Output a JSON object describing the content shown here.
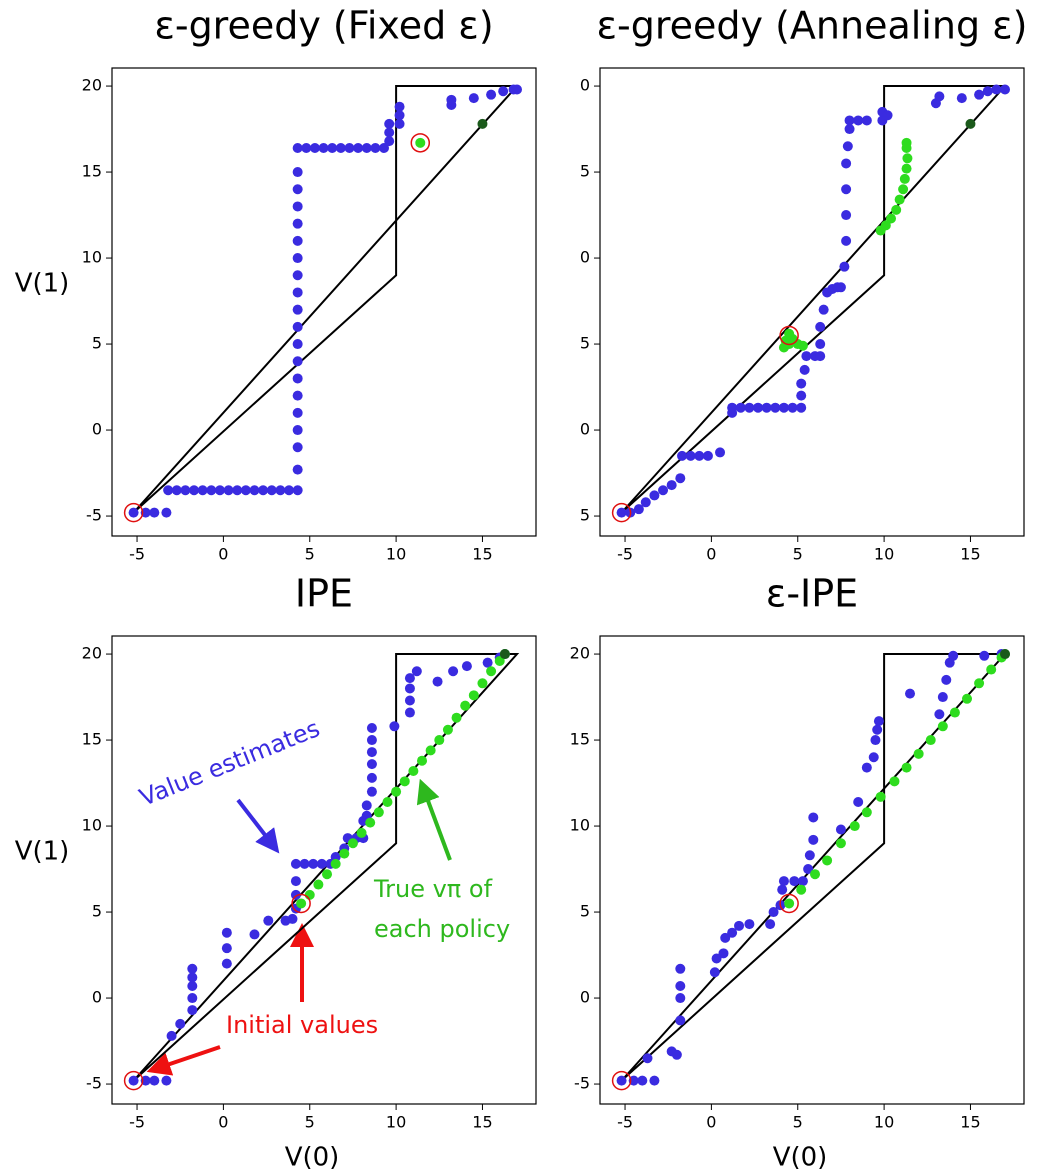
{
  "chart_data": [
    {
      "type": "scatter",
      "title": "ε-greedy (Fixed ε)",
      "ylabel": "V(1)",
      "xlim": [
        -6.45,
        18.1
      ],
      "ylim": [
        -6.16,
        21.05
      ],
      "xticks": [
        -5,
        0,
        5,
        10,
        15
      ],
      "yticks": [
        -5,
        0,
        5,
        10,
        15,
        20
      ],
      "boundary": {
        "x": [
          -5.2,
          10,
          10,
          17,
          -5.2
        ],
        "y": [
          -4.8,
          9,
          20,
          20,
          -4.8
        ]
      },
      "series": [
        {
          "color": "#3a2be0",
          "marker": "dot",
          "x": [
            -5.2,
            -4.5,
            -4,
            -3.3,
            -3.2,
            -2.7,
            -2.2,
            -1.7,
            -1.2,
            -0.7,
            -0.2,
            0.3,
            0.8,
            1.3,
            1.8,
            2.3,
            2.8,
            3.3,
            3.8,
            4.3,
            4.3,
            4.3,
            4.3,
            4.3,
            4.3,
            4.3,
            4.3,
            4.3,
            4.3,
            4.3,
            4.3,
            4.3,
            4.3,
            4.3,
            4.3,
            4.3,
            4.3,
            4.3,
            4.3,
            4.8,
            5.3,
            5.8,
            6.3,
            6.8,
            7.3,
            7.8,
            8.3,
            8.8,
            9.3,
            9.6,
            9.6,
            9.6,
            10.2,
            10.2,
            10.2,
            13.2,
            13.2,
            14.5,
            15.5,
            16.2,
            16.8,
            17
          ],
          "values": [
            -4.8,
            -4.8,
            -4.8,
            -4.8,
            -3.5,
            -3.5,
            -3.5,
            -3.5,
            -3.5,
            -3.5,
            -3.5,
            -3.5,
            -3.5,
            -3.5,
            -3.5,
            -3.5,
            -3.5,
            -3.5,
            -3.5,
            -3.5,
            -2.3,
            -1,
            0,
            1,
            2,
            3,
            4,
            5,
            6,
            7,
            8,
            9,
            10,
            11,
            12,
            13,
            14,
            15,
            16.4,
            16.4,
            16.4,
            16.4,
            16.4,
            16.4,
            16.4,
            16.4,
            16.4,
            16.4,
            16.4,
            16.8,
            17.3,
            17.8,
            17.8,
            18.3,
            18.8,
            18.9,
            19.2,
            19.3,
            19.5,
            19.7,
            19.8,
            19.8
          ]
        },
        {
          "color": "#2edc1e",
          "marker": "dot",
          "x": [
            11.4
          ],
          "values": [
            16.7
          ]
        },
        {
          "color": "#1b5a1b",
          "marker": "dot",
          "x": [
            15
          ],
          "values": [
            17.8
          ]
        },
        {
          "color": "#e01010",
          "marker": "ring",
          "x": [
            -5.2,
            11.4
          ],
          "values": [
            -4.8,
            16.7
          ]
        }
      ]
    },
    {
      "type": "scatter",
      "title": "ε-greedy (Annealing ε)",
      "xlim": [
        -6.45,
        18.1
      ],
      "ylim": [
        -6.16,
        21.05
      ],
      "xticks": [
        -5,
        0,
        5,
        10,
        15
      ],
      "yticks": [
        {
          "value": -5,
          "label": "5"
        },
        0,
        5,
        {
          "value": 10,
          "label": "0"
        },
        {
          "value": 15,
          "label": "5"
        },
        {
          "value": 20,
          "label": "0"
        }
      ],
      "boundary": {
        "x": [
          -5.2,
          10,
          10,
          17,
          -5.2
        ],
        "y": [
          -4.8,
          9,
          20,
          20,
          -4.8
        ]
      },
      "series": [
        {
          "color": "#3a2be0",
          "marker": "dot",
          "x": [
            -5.2,
            -4.7,
            -4.2,
            -3.8,
            -3.3,
            -2.8,
            -2.3,
            -1.8,
            -1.7,
            -1.2,
            -0.7,
            -0.2,
            0.5,
            1.2,
            1.2,
            1.7,
            2.2,
            2.7,
            3.2,
            3.7,
            4.2,
            4.7,
            5.2,
            5.2,
            5.2,
            5.4,
            5.5,
            6.0,
            6.3,
            6.3,
            6.3,
            6.5,
            6.7,
            7.0,
            7.3,
            7.5,
            7.7,
            7.8,
            7.8,
            7.8,
            7.8,
            7.9,
            8.0,
            8.0,
            8.5,
            9.0,
            9.9,
            9.9,
            10.2,
            13,
            13.2,
            14.5,
            15.5,
            16,
            16.5,
            17
          ],
          "values": [
            -4.8,
            -4.8,
            -4.6,
            -4.2,
            -3.8,
            -3.5,
            -3.2,
            -2.8,
            -1.5,
            -1.5,
            -1.5,
            -1.5,
            -1.3,
            1.0,
            1.3,
            1.3,
            1.3,
            1.3,
            1.3,
            1.3,
            1.3,
            1.3,
            1.3,
            2,
            2.7,
            3.5,
            4.3,
            4.3,
            4.3,
            5.0,
            6,
            7,
            8,
            8.2,
            8.3,
            8.3,
            9.5,
            11,
            12.5,
            14,
            15.5,
            16.5,
            17.5,
            18,
            18,
            18,
            18,
            18.5,
            18.3,
            19.0,
            19.4,
            19.3,
            19.5,
            19.7,
            19.8,
            19.8
          ]
        },
        {
          "color": "#2edc1e",
          "marker": "dot",
          "x": [
            4.2,
            4.5,
            4.7,
            4.5,
            5.0,
            5.3,
            4.3,
            9.8,
            10.1,
            10.4,
            10.7,
            10.9,
            11.1,
            11.2,
            11.3,
            11.35,
            11.3,
            11.3
          ],
          "values": [
            4.8,
            5.0,
            5.3,
            5.6,
            5.0,
            4.9,
            5.2,
            11.6,
            11.9,
            12.3,
            12.8,
            13.4,
            14,
            14.6,
            15.2,
            15.8,
            16.4,
            16.7
          ]
        },
        {
          "color": "#1b5a1b",
          "marker": "dot",
          "x": [
            15
          ],
          "values": [
            17.8
          ]
        },
        {
          "color": "#e01010",
          "marker": "ring",
          "x": [
            -5.2,
            4.5
          ],
          "values": [
            -4.8,
            5.5
          ]
        }
      ]
    },
    {
      "type": "scatter",
      "title": "IPE",
      "ylabel": "V(1)",
      "xlabel": "V(0)",
      "xlim": [
        -6.45,
        18.1
      ],
      "ylim": [
        -6.16,
        21.05
      ],
      "xticks": [
        -5,
        0,
        5,
        10,
        15
      ],
      "yticks": [
        -5,
        0,
        5,
        10,
        15,
        20
      ],
      "boundary": {
        "x": [
          -5.2,
          10,
          10,
          17,
          -5.2
        ],
        "y": [
          -4.8,
          9,
          20,
          20,
          -4.8
        ]
      },
      "annotations": [
        "Value estimates",
        "True vπ of",
        "each policy",
        "Initial values"
      ],
      "series": [
        {
          "color": "#3a2be0",
          "marker": "dot",
          "x": [
            -5.2,
            -4.5,
            -4,
            -3.3,
            -3,
            -2.5,
            -1.8,
            -1.8,
            -1.8,
            -1.8,
            -1.8,
            0.2,
            0.2,
            0.2,
            1.8,
            2.6,
            3.6,
            4,
            4.2,
            4.2,
            4.2,
            4.2,
            4.7,
            5.2,
            5.7,
            6.2,
            6.5,
            7.0,
            7.2,
            7.7,
            8.1,
            8.1,
            8.3,
            8.3,
            8.6,
            8.6,
            8.6,
            8.6,
            8.6,
            8.6,
            9.9,
            10.8,
            10.8,
            10.8,
            10.8,
            11.2,
            12.4,
            13.3,
            14.1,
            15.3,
            16,
            16.3
          ],
          "values": [
            -4.8,
            -4.8,
            -4.8,
            -4.8,
            -2.2,
            -1.5,
            -0.7,
            0,
            0.7,
            1.2,
            1.7,
            2,
            2.9,
            3.8,
            3.7,
            4.5,
            4.5,
            4.6,
            5.2,
            6.0,
            6.8,
            7.8,
            7.8,
            7.8,
            7.8,
            7.8,
            8.2,
            8.7,
            9.3,
            9.3,
            9.3,
            10.3,
            10.6,
            11.2,
            12.0,
            12.8,
            13.6,
            14.3,
            15.0,
            15.7,
            15.8,
            16.6,
            17.3,
            18.0,
            18.6,
            19.0,
            18.4,
            19,
            19.3,
            19.5,
            19.8,
            20
          ]
        },
        {
          "color": "#2edc1e",
          "marker": "dot",
          "x": [
            4.5,
            5,
            5.5,
            6,
            6.5,
            7,
            7.5,
            8,
            8.5,
            9,
            9.5,
            10,
            10.5,
            11,
            11.5,
            12,
            12.5,
            13,
            13.5,
            14,
            14.5,
            15,
            15.5,
            16,
            16.3
          ],
          "values": [
            5.5,
            6,
            6.6,
            7.2,
            7.8,
            8.4,
            9.0,
            9.6,
            10.2,
            10.8,
            11.4,
            12,
            12.6,
            13.2,
            13.8,
            14.4,
            15,
            15.6,
            16.3,
            17,
            17.6,
            18.3,
            19,
            19.6,
            20
          ]
        },
        {
          "color": "#1b5a1b",
          "marker": "dot",
          "x": [
            16.3
          ],
          "values": [
            20
          ]
        },
        {
          "color": "#e01010",
          "marker": "ring",
          "x": [
            -5.2,
            4.5
          ],
          "values": [
            -4.8,
            5.5
          ]
        }
      ]
    },
    {
      "type": "scatter",
      "title": "ε-IPE",
      "xlabel": "V(0)",
      "xlim": [
        -6.45,
        18.1
      ],
      "ylim": [
        -6.16,
        21.05
      ],
      "xticks": [
        -5,
        0,
        5,
        10,
        15
      ],
      "yticks": [
        -5,
        0,
        5,
        10,
        15,
        20
      ],
      "boundary": {
        "x": [
          -5.2,
          10,
          10,
          17,
          -5.2
        ],
        "y": [
          -4.8,
          9,
          20,
          20,
          -4.8
        ]
      },
      "series": [
        {
          "color": "#3a2be0",
          "marker": "dot",
          "x": [
            -5.2,
            -4.5,
            -4,
            -3.3,
            -3.7,
            -2.3,
            -2,
            -1.8,
            -1.8,
            -1.8,
            -1.8,
            0.2,
            0.3,
            0.7,
            0.8,
            1.2,
            1.6,
            2.2,
            3.4,
            3.6,
            4,
            4.1,
            4.2,
            4.8,
            5.3,
            5.6,
            5.7,
            5.9,
            5.9,
            7.5,
            8.5,
            9,
            9.4,
            9.5,
            9.6,
            9.7,
            11.5,
            13.2,
            13.4,
            13.6,
            13.8,
            14,
            15.8,
            16.8
          ],
          "values": [
            -4.8,
            -4.8,
            -4.8,
            -4.8,
            -3.5,
            -3.1,
            -3.3,
            -1.3,
            0,
            0.7,
            1.7,
            1.5,
            2.3,
            2.6,
            3.5,
            3.8,
            4.2,
            4.3,
            4.3,
            5,
            5.4,
            6.3,
            6.8,
            6.8,
            6.8,
            7.5,
            8.3,
            9.2,
            10.5,
            9.8,
            11.4,
            13.4,
            14,
            15,
            15.6,
            16.1,
            17.7,
            16.5,
            17.5,
            18.5,
            19.5,
            19.9,
            19.9,
            20
          ]
        },
        {
          "color": "#2edc1e",
          "marker": "dot",
          "x": [
            4.5,
            5.2,
            6,
            6.7,
            7.5,
            8.3,
            9,
            9.8,
            10.6,
            11.3,
            12,
            12.7,
            13.4,
            14.1,
            14.8,
            15.5,
            16.2,
            16.8,
            17
          ],
          "values": [
            5.5,
            6.3,
            7.2,
            8,
            9,
            10,
            10.8,
            11.7,
            12.6,
            13.4,
            14.2,
            15,
            15.8,
            16.6,
            17.4,
            18.3,
            19.1,
            19.8,
            20
          ]
        },
        {
          "color": "#1b5a1b",
          "marker": "dot",
          "x": [
            17
          ],
          "values": [
            20
          ]
        },
        {
          "color": "#e01010",
          "marker": "ring",
          "x": [
            -5.2,
            4.5
          ],
          "values": [
            -4.8,
            5.5
          ]
        }
      ]
    }
  ]
}
